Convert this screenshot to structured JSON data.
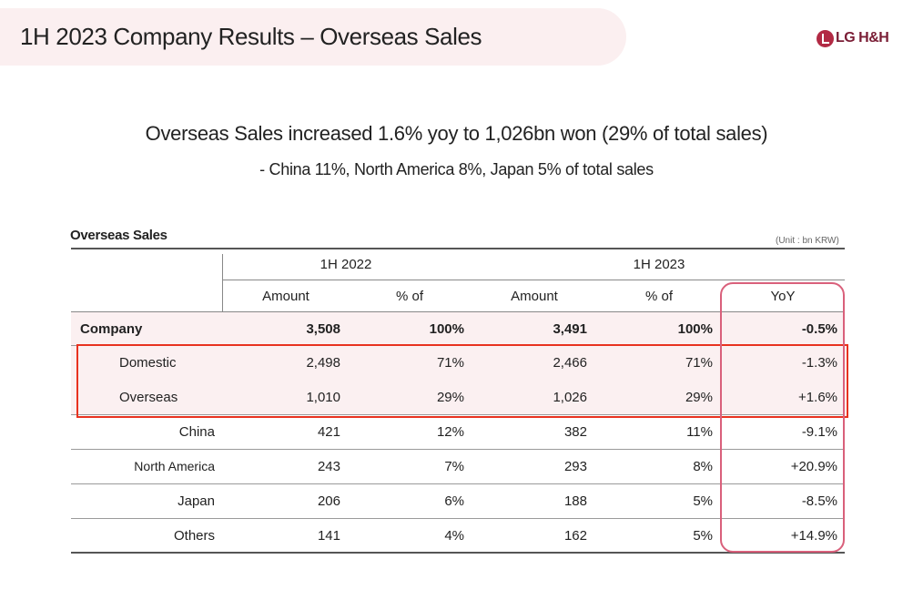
{
  "header": {
    "title": "1H 2023 Company Results – Overseas Sales",
    "logo_text": "LG H&H"
  },
  "summary": {
    "headline": "Overseas Sales increased 1.6% yoy to 1,026bn won (29% of total sales)",
    "subline": "- China 11%, North America 8%, Japan 5% of total sales"
  },
  "table": {
    "title": "Overseas Sales",
    "unit": "(Unit : bn KRW)",
    "period_headers": [
      "1H 2022",
      "1H 2023"
    ],
    "column_headers": [
      "Amount",
      "% of",
      "Amount",
      "% of",
      "YoY"
    ],
    "rows": [
      {
        "label": "Company",
        "a22": "3,508",
        "p22": "100%",
        "a23": "3,491",
        "p23": "100%",
        "yoy": "-0.5%"
      },
      {
        "label": "Domestic",
        "a22": "2,498",
        "p22": "71%",
        "a23": "2,466",
        "p23": "71%",
        "yoy": "-1.3%"
      },
      {
        "label": "Overseas",
        "a22": "1,010",
        "p22": "29%",
        "a23": "1,026",
        "p23": "29%",
        "yoy": "+1.6%"
      },
      {
        "label": "China",
        "a22": "421",
        "p22": "12%",
        "a23": "382",
        "p23": "11%",
        "yoy": "-9.1%"
      },
      {
        "label": "North America",
        "a22": "243",
        "p22": "7%",
        "a23": "293",
        "p23": "8%",
        "yoy": "+20.9%"
      },
      {
        "label": "Japan",
        "a22": "206",
        "p22": "6%",
        "a23": "188",
        "p23": "5%",
        "yoy": "-8.5%"
      },
      {
        "label": "Others",
        "a22": "141",
        "p22": "4%",
        "a23": "162",
        "p23": "5%",
        "yoy": "+14.9%"
      }
    ]
  },
  "colors": {
    "accent": "#b22a44",
    "highlight_box": "#e8321f",
    "yoy_box": "#d9607b",
    "row_shade": "#fbf0f1"
  }
}
